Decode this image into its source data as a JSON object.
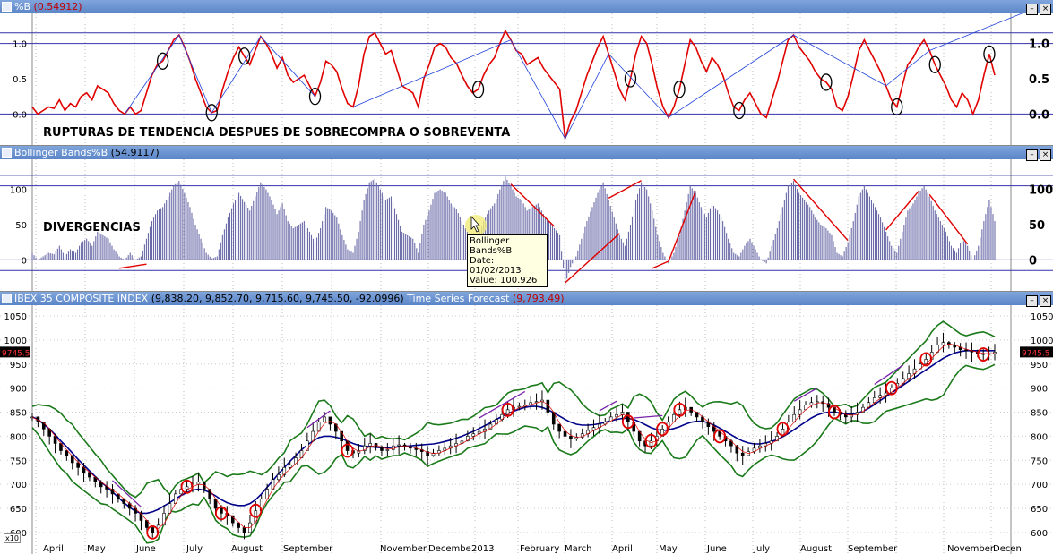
{
  "panes": {
    "pb": {
      "title": "%B",
      "value": "(0.54912)",
      "annotation": "RUPTURAS DE TENDENCIA DESPUES DE SOBRECOMPRA O SOBREVENTA"
    },
    "bb": {
      "title": "Bollinger Bands%B",
      "value": "(54.9117)",
      "annotation": "DIVERGENCIAS"
    },
    "price": {
      "title": "IBEX 35 COMPOSITE INDEX",
      "ohlc": "(9,838.20, 9,852.70, 9,715.60, 9,745.50, -92.0996)",
      "forecast_label": "Time Series Forecast",
      "forecast_value": "(9,793.49)",
      "last_price_tag": "9745.5",
      "scale_label": "x10"
    }
  },
  "tooltip": {
    "line1": "Bollinger Bands%B",
    "line2": "Date: 01/02/2013",
    "line3": "Value: 100.926"
  },
  "window_buttons": {
    "minimize": "–",
    "close": "×"
  },
  "chart_data": [
    {
      "type": "line",
      "title": "%B",
      "y_ticks": [
        "1.0",
        "0.5",
        "0.0"
      ],
      "reference_lines": [
        1.0,
        0.0
      ],
      "ylim": [
        -0.35,
        1.35
      ],
      "series": [
        {
          "name": "%B",
          "color": "#e00000",
          "values": [
            0.1,
            0.0,
            0.05,
            0.1,
            0.08,
            0.2,
            0.05,
            0.15,
            0.1,
            0.25,
            0.3,
            0.2,
            0.4,
            0.35,
            0.3,
            0.15,
            0.05,
            0.0,
            0.1,
            0.0,
            0.05,
            0.3,
            0.55,
            0.7,
            0.75,
            0.9,
            1.05,
            1.12,
            0.95,
            0.75,
            0.5,
            0.3,
            0.1,
            0.02,
            0.05,
            0.35,
            0.6,
            0.8,
            0.95,
            0.82,
            0.7,
            0.9,
            1.1,
            1.0,
            0.85,
            0.65,
            0.8,
            0.55,
            0.45,
            0.5,
            0.55,
            0.4,
            0.25,
            0.45,
            0.75,
            0.7,
            0.6,
            0.35,
            0.15,
            0.1,
            0.4,
            0.85,
            1.1,
            1.15,
            1.0,
            0.85,
            0.9,
            0.65,
            0.4,
            0.35,
            0.3,
            0.1,
            0.5,
            0.7,
            0.95,
            1.0,
            0.95,
            0.8,
            0.72,
            0.55,
            0.4,
            0.3,
            0.35,
            0.55,
            0.7,
            0.8,
            1.0,
            1.18,
            1.05,
            0.9,
            0.85,
            0.7,
            0.75,
            0.8,
            0.65,
            0.55,
            0.45,
            0.35,
            -0.35,
            -0.1,
            0.05,
            0.3,
            0.55,
            0.75,
            0.95,
            1.1,
            0.85,
            0.6,
            0.35,
            0.2,
            0.5,
            0.85,
            1.1,
            1.0,
            0.7,
            0.35,
            0.1,
            -0.05,
            0.1,
            0.35,
            0.7,
            1.05,
            0.95,
            0.75,
            0.6,
            0.8,
            0.7,
            0.55,
            0.3,
            0.1,
            0.05,
            0.2,
            0.3,
            0.15,
            0.0,
            -0.05,
            0.2,
            0.45,
            0.75,
            1.05,
            1.12,
            0.95,
            0.85,
            0.75,
            0.6,
            0.5,
            0.45,
            0.35,
            0.1,
            0.05,
            0.25,
            0.55,
            0.9,
            1.05,
            0.9,
            0.75,
            0.6,
            0.4,
            0.2,
            0.1,
            0.4,
            0.7,
            0.8,
            0.95,
            1.05,
            0.9,
            0.7,
            0.55,
            0.4,
            0.2,
            0.1,
            0.3,
            0.2,
            0.0,
            0.2,
            0.55,
            0.85,
            0.55
          ]
        }
      ]
    },
    {
      "type": "bar",
      "title": "Bollinger Bands%B",
      "y_ticks": [
        "100",
        "50",
        "0"
      ],
      "reference_lines": [
        120,
        105,
        0,
        -15
      ],
      "ylim": [
        -35,
        135
      ],
      "series": [
        {
          "name": "Bollinger Bands%B",
          "color": "#6a6aa8",
          "values": [
            10,
            0,
            5,
            10,
            8,
            20,
            5,
            15,
            10,
            25,
            30,
            20,
            40,
            35,
            30,
            15,
            5,
            0,
            10,
            0,
            5,
            30,
            55,
            70,
            75,
            90,
            105,
            112,
            95,
            75,
            50,
            30,
            10,
            2,
            5,
            35,
            60,
            80,
            95,
            82,
            70,
            90,
            110,
            100,
            85,
            65,
            80,
            55,
            45,
            50,
            55,
            40,
            25,
            45,
            75,
            70,
            60,
            35,
            15,
            10,
            40,
            85,
            110,
            115,
            100,
            85,
            90,
            65,
            40,
            35,
            30,
            10,
            50,
            70,
            95,
            100,
            95,
            80,
            72,
            55,
            40,
            30,
            35,
            55,
            70,
            80,
            100,
            118,
            105,
            90,
            85,
            70,
            75,
            80,
            65,
            55,
            45,
            35,
            -35,
            -10,
            5,
            30,
            55,
            75,
            95,
            110,
            85,
            60,
            35,
            20,
            50,
            85,
            110,
            100,
            70,
            35,
            10,
            -5,
            10,
            35,
            70,
            105,
            95,
            75,
            60,
            80,
            70,
            55,
            30,
            10,
            5,
            20,
            30,
            15,
            0,
            -5,
            20,
            45,
            75,
            105,
            112,
            95,
            85,
            75,
            60,
            50,
            45,
            35,
            10,
            5,
            25,
            55,
            90,
            105,
            90,
            75,
            60,
            40,
            20,
            10,
            40,
            70,
            80,
            95,
            105,
            90,
            70,
            55,
            40,
            20,
            10,
            30,
            20,
            0,
            20,
            55,
            85,
            55
          ]
        }
      ]
    },
    {
      "type": "line",
      "title": "IBEX 35 COMPOSITE INDEX",
      "ylabel": "x10",
      "y_ticks": [
        "1050",
        "1000",
        "950",
        "900",
        "850",
        "800",
        "750",
        "700",
        "650",
        "600"
      ],
      "ylim": [
        570,
        1065
      ],
      "x_tick_labels": [
        "April",
        "May",
        "June",
        "July",
        "August",
        "September",
        "November",
        "Decembe",
        "2013",
        "February",
        "March",
        "April",
        "May",
        "June",
        "July",
        "August",
        "September",
        "November",
        "Decen"
      ],
      "series": [
        {
          "name": "price",
          "color": "#000000",
          "values": [
            840,
            830,
            815,
            800,
            785,
            770,
            760,
            745,
            735,
            725,
            715,
            705,
            695,
            690,
            680,
            670,
            660,
            650,
            640,
            625,
            610,
            600,
            615,
            640,
            660,
            680,
            690,
            695,
            700,
            705,
            690,
            670,
            650,
            640,
            635,
            620,
            610,
            600,
            620,
            645,
            670,
            690,
            710,
            720,
            735,
            740,
            755,
            770,
            790,
            810,
            830,
            840,
            825,
            810,
            790,
            770,
            765,
            770,
            780,
            785,
            778,
            770,
            772,
            780,
            782,
            778,
            775,
            772,
            768,
            760,
            765,
            770,
            775,
            780,
            785,
            790,
            800,
            805,
            810,
            815,
            825,
            835,
            845,
            855,
            860,
            862,
            865,
            870,
            872,
            875,
            850,
            825,
            810,
            800,
            795,
            798,
            805,
            812,
            818,
            825,
            830,
            840,
            845,
            850,
            830,
            810,
            790,
            780,
            790,
            800,
            815,
            830,
            845,
            855,
            860,
            850,
            840,
            830,
            820,
            810,
            800,
            790,
            780,
            765,
            760,
            768,
            775,
            780,
            785,
            790,
            800,
            815,
            830,
            845,
            855,
            865,
            870,
            872,
            868,
            860,
            850,
            845,
            840,
            845,
            850,
            860,
            870,
            880,
            885,
            890,
            900,
            910,
            920,
            930,
            940,
            950,
            960,
            975,
            990,
            995,
            990,
            985,
            980,
            978,
            975,
            972,
            970,
            972,
            975
          ]
        },
        {
          "name": "middle band",
          "color": "#00008b",
          "values": [
            840,
            835,
            825,
            815,
            803,
            790,
            778,
            765,
            752,
            740,
            728,
            716,
            705,
            695,
            684,
            673,
            662,
            652,
            644,
            640,
            640,
            643,
            648,
            655,
            662,
            670,
            677,
            683,
            688,
            690,
            688,
            683,
            676,
            668,
            662,
            658,
            656,
            656,
            660,
            668,
            680,
            694,
            708,
            722,
            735,
            748,
            760,
            772,
            782,
            790,
            797,
            800,
            800,
            798,
            795,
            790,
            785,
            781,
            779,
            778,
            777,
            776,
            776,
            777,
            778,
            779,
            780,
            781,
            782,
            783,
            784,
            786,
            789,
            792,
            796,
            800,
            805,
            810,
            816,
            822,
            828,
            835,
            841,
            847,
            852,
            856,
            860,
            862,
            862,
            860,
            855,
            849,
            842,
            835,
            829,
            825,
            823,
            823,
            824,
            826,
            829,
            832,
            835,
            837,
            837,
            835,
            830,
            824,
            818,
            814,
            812,
            813,
            816,
            820,
            825,
            829,
            831,
            831,
            828,
            823,
            817,
            810,
            803,
            796,
            790,
            786,
            784,
            784,
            786,
            789,
            793,
            799,
            806,
            814,
            822,
            830,
            838,
            844,
            848,
            850,
            850,
            848,
            846,
            846,
            848,
            852,
            858,
            866,
            874,
            882,
            890,
            898,
            906,
            914,
            922,
            930,
            938,
            946,
            954,
            962,
            968,
            973,
            976,
            978,
            978,
            978,
            978,
            978,
            978
          ]
        }
      ],
      "markers": {
        "color": "#e00000",
        "count": 19
      }
    }
  ]
}
